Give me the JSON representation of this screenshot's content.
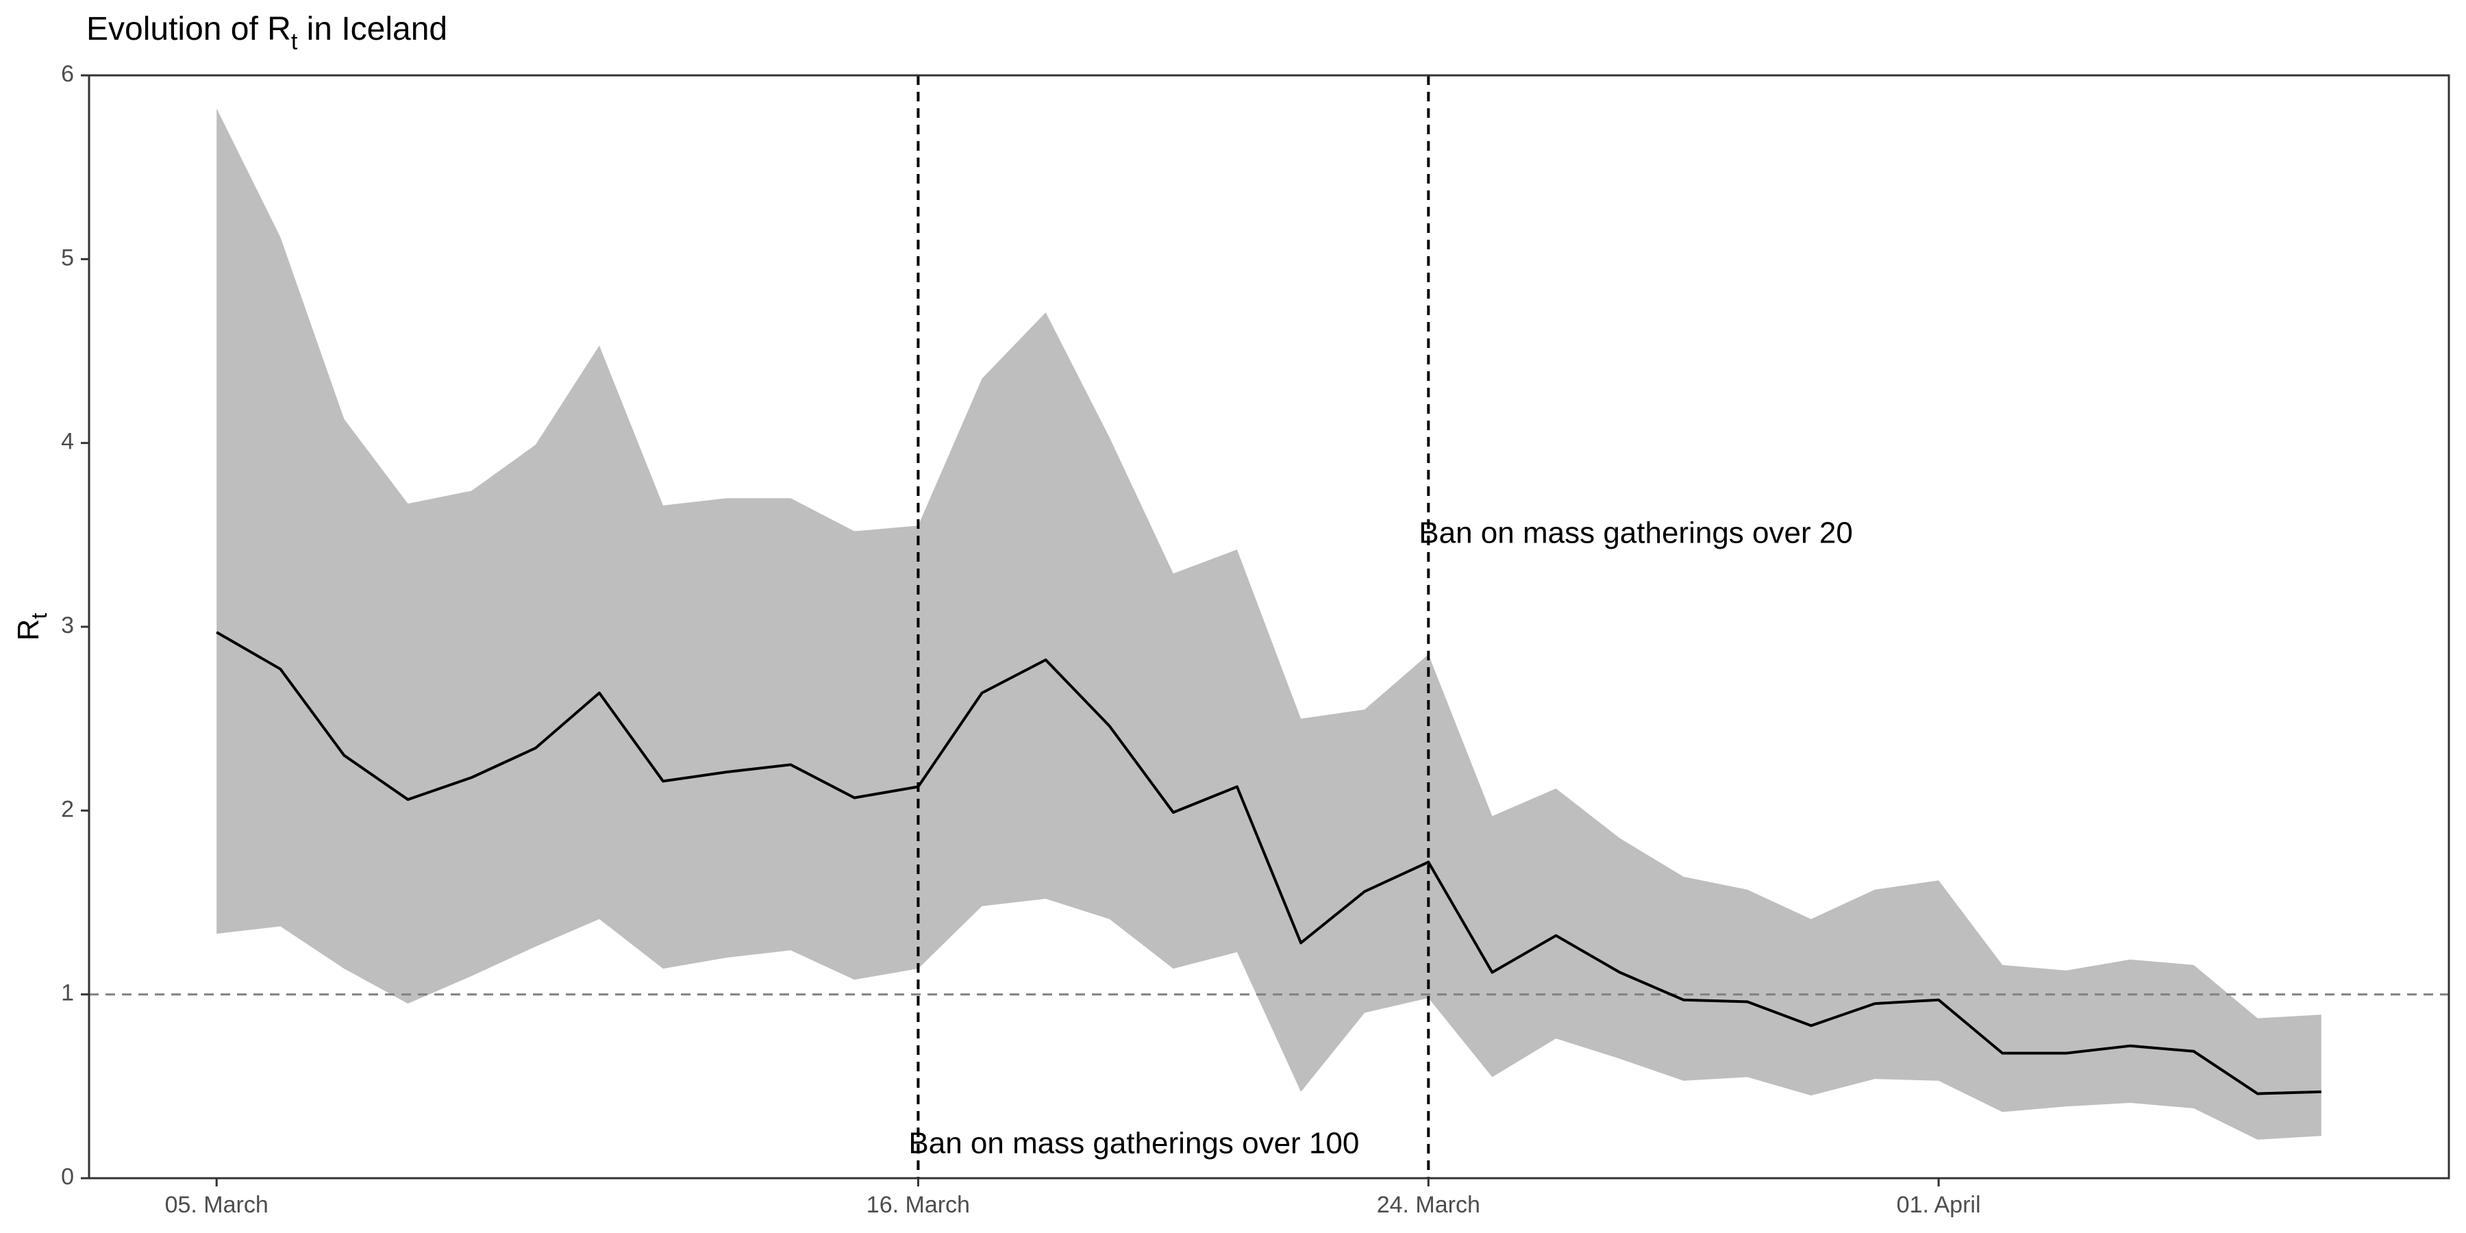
{
  "chart_data": {
    "type": "line",
    "title": "Evolution of R",
    "title_subscript": "t",
    "title_suffix": " in Iceland",
    "ylabel": "R",
    "ylabel_subscript": "t",
    "xlabel": "",
    "ylim": [
      0,
      6
    ],
    "xlim": [
      "2020-03-03",
      "2020-04-09"
    ],
    "y_ticks": [
      0,
      1,
      2,
      3,
      4,
      5,
      6
    ],
    "x_ticks": [
      {
        "date": "2020-03-05",
        "label": "05. March"
      },
      {
        "date": "2020-03-16",
        "label": "16. March"
      },
      {
        "date": "2020-03-24",
        "label": "24. March"
      },
      {
        "date": "2020-04-01",
        "label": "01. April"
      }
    ],
    "grid": false,
    "x": [
      "2020-03-05",
      "2020-03-06",
      "2020-03-07",
      "2020-03-08",
      "2020-03-09",
      "2020-03-10",
      "2020-03-11",
      "2020-03-12",
      "2020-03-13",
      "2020-03-14",
      "2020-03-15",
      "2020-03-16",
      "2020-03-17",
      "2020-03-18",
      "2020-03-19",
      "2020-03-20",
      "2020-03-21",
      "2020-03-22",
      "2020-03-23",
      "2020-03-24",
      "2020-03-25",
      "2020-03-26",
      "2020-03-27",
      "2020-03-28",
      "2020-03-29",
      "2020-03-30",
      "2020-03-31",
      "2020-04-01",
      "2020-04-02",
      "2020-04-03",
      "2020-04-04",
      "2020-04-05",
      "2020-04-06",
      "2020-04-07"
    ],
    "series": [
      {
        "values": [
          2.97,
          2.77,
          2.3,
          2.06,
          2.18,
          2.34,
          2.64,
          2.16,
          2.21,
          2.25,
          2.07,
          2.13,
          2.64,
          2.82,
          2.46,
          1.99,
          2.13,
          1.28,
          1.56,
          1.72,
          1.12,
          1.32,
          1.12,
          0.97,
          0.96,
          0.83,
          0.95,
          0.97,
          0.68,
          0.68,
          0.72,
          0.69,
          0.46,
          0.47
        ]
      }
    ],
    "band": {
      "upper": [
        5.82,
        5.12,
        4.13,
        3.67,
        3.74,
        3.99,
        4.53,
        3.66,
        3.7,
        3.7,
        3.52,
        3.55,
        4.35,
        4.71,
        4.03,
        3.29,
        3.42,
        2.5,
        2.55,
        2.85,
        1.97,
        2.12,
        1.85,
        1.64,
        1.57,
        1.41,
        1.57,
        1.62,
        1.16,
        1.13,
        1.19,
        1.16,
        0.87,
        0.89
      ],
      "lower": [
        1.33,
        1.37,
        1.14,
        0.95,
        1.1,
        1.26,
        1.41,
        1.14,
        1.2,
        1.24,
        1.08,
        1.14,
        1.48,
        1.52,
        1.41,
        1.14,
        1.23,
        0.47,
        0.9,
        0.98,
        0.55,
        0.76,
        0.65,
        0.53,
        0.55,
        0.45,
        0.54,
        0.53,
        0.36,
        0.39,
        0.41,
        0.38,
        0.21,
        0.23
      ],
      "color": "#bebebe"
    },
    "line_color": "#000000",
    "reference_line": {
      "y": 1,
      "color": "#808080",
      "style": "dashed"
    },
    "events": [
      {
        "date": "2020-03-16",
        "label": "Ban on mass gatherings over 100",
        "label_y": 0.18
      },
      {
        "date": "2020-03-24",
        "label": "Ban on mass gatherings over 20",
        "label_y": 3.5
      }
    ]
  }
}
